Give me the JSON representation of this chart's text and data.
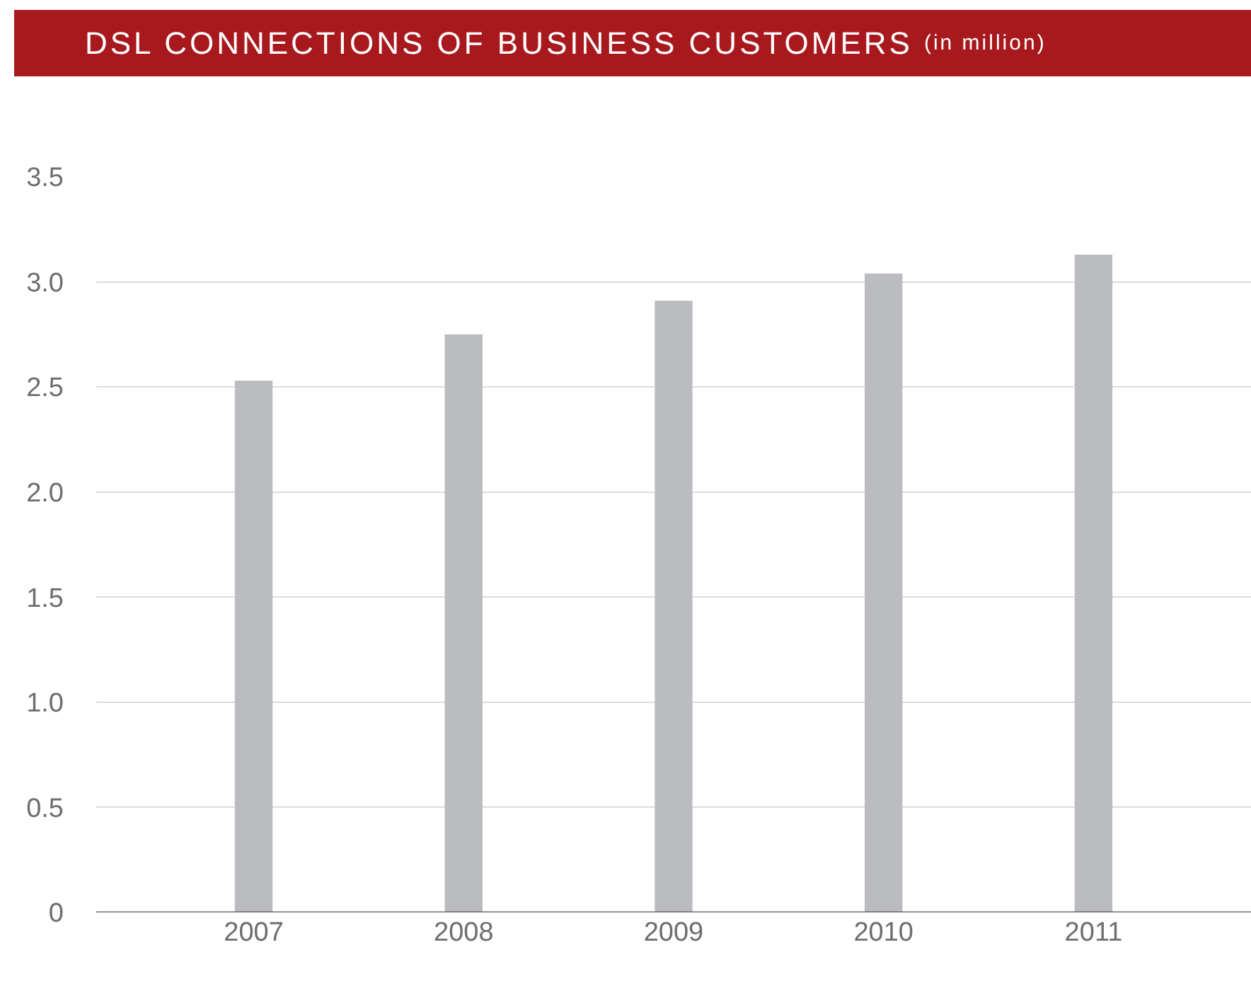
{
  "chart_data": {
    "type": "bar",
    "title": "DSL CONNECTIONS OF BUSINESS CUSTOMERS",
    "subtitle": "(in million)",
    "categories": [
      "2007",
      "2008",
      "2009",
      "2010",
      "2011"
    ],
    "values": [
      2.53,
      2.75,
      2.91,
      3.04,
      3.13
    ],
    "color": "#bbbcbf",
    "ylim": [
      0,
      3.5
    ],
    "yticks": [
      {
        "value": 0,
        "label": "0"
      },
      0.5,
      {
        "value": 1,
        "label": "1.0"
      },
      1.5,
      {
        "value": 2,
        "label": "2.0"
      },
      2.5,
      {
        "value": 3,
        "label": "3.0"
      },
      3.5
    ],
    "grid": "y"
  }
}
